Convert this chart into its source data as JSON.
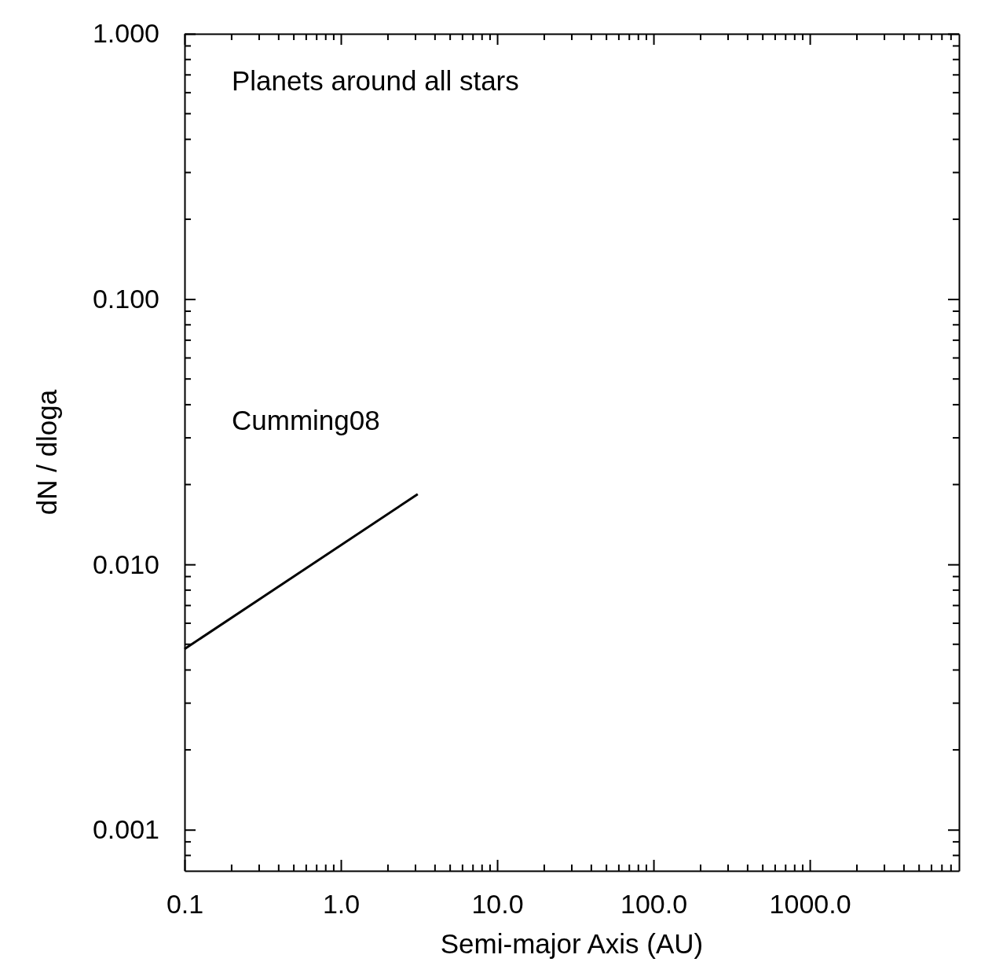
{
  "chart_data": {
    "type": "line",
    "title": "Planets around all stars",
    "xlabel": "Semi-major Axis (AU)",
    "ylabel": "dN / dloga",
    "log": "xy",
    "legend": false,
    "grid": false,
    "marker": "none",
    "line_style": "solid",
    "xlim": [
      0.1,
      9000
    ],
    "ylim": [
      0.0007,
      1
    ],
    "xticks": [
      {
        "value": 0.1,
        "label": "0.1"
      },
      {
        "value": 1,
        "label": "1.0"
      },
      {
        "value": 10,
        "label": "10.0"
      },
      {
        "value": 100,
        "label": "100.0"
      },
      {
        "value": 1000,
        "label": "1000.0"
      }
    ],
    "yticks": [
      {
        "value": 0.001,
        "label": "0.001"
      },
      {
        "value": 0.01,
        "label": "0.010"
      },
      {
        "value": 0.1,
        "label": "0.100"
      },
      {
        "value": 1,
        "label": "1.000"
      }
    ],
    "series": [
      {
        "name": "Cumming08",
        "color": "#000000",
        "x": [
          0.1,
          3.1
        ],
        "values": [
          0.0048,
          0.0184
        ]
      }
    ]
  }
}
